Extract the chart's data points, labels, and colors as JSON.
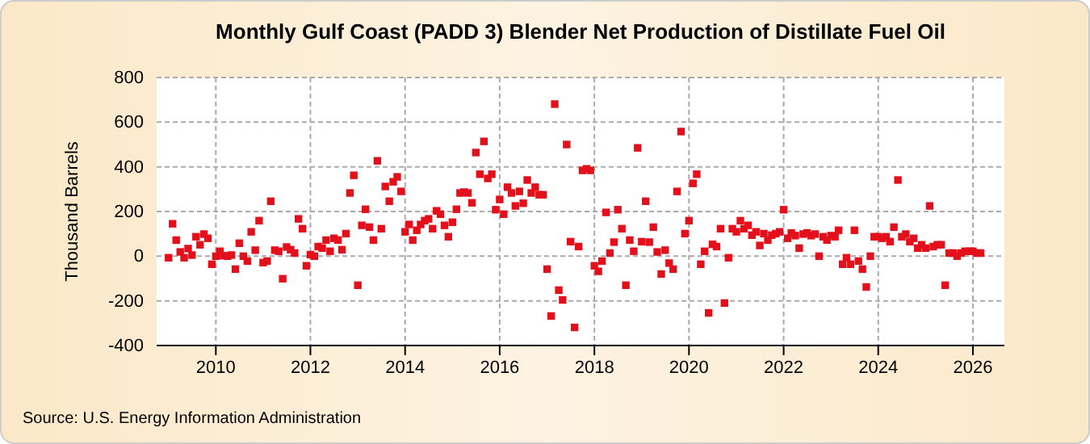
{
  "chart_data": {
    "type": "scatter",
    "title": "Monthly Gulf Coast (PADD 3) Blender Net Production of Distillate Fuel Oil",
    "ylabel": "Thousand Barrels",
    "annotations": [
      "Source: U.S. Energy Information Administration"
    ],
    "xlim": [
      "2008-10",
      "2026-09"
    ],
    "xticks": [
      "2010",
      "2012",
      "2014",
      "2016",
      "2018",
      "2020",
      "2022",
      "2024",
      "2026"
    ],
    "ylim": [
      -400,
      800
    ],
    "yticks": [
      -400,
      -200,
      0,
      200,
      400,
      600,
      800
    ],
    "grid": true,
    "marker": "square",
    "x": [
      "2009-01",
      "2009-02",
      "2009-03",
      "2009-04",
      "2009-05",
      "2009-06",
      "2009-07",
      "2009-08",
      "2009-09",
      "2009-10",
      "2009-11",
      "2009-12",
      "2010-01",
      "2010-02",
      "2010-03",
      "2010-04",
      "2010-05",
      "2010-06",
      "2010-07",
      "2010-08",
      "2010-09",
      "2010-10",
      "2010-11",
      "2010-12",
      "2011-01",
      "2011-02",
      "2011-03",
      "2011-04",
      "2011-05",
      "2011-06",
      "2011-07",
      "2011-08",
      "2011-09",
      "2011-10",
      "2011-11",
      "2011-12",
      "2012-01",
      "2012-02",
      "2012-03",
      "2012-04",
      "2012-05",
      "2012-06",
      "2012-07",
      "2012-08",
      "2012-09",
      "2012-10",
      "2012-11",
      "2012-12",
      "2013-01",
      "2013-02",
      "2013-03",
      "2013-04",
      "2013-05",
      "2013-06",
      "2013-07",
      "2013-08",
      "2013-09",
      "2013-10",
      "2013-11",
      "2013-12",
      "2014-01",
      "2014-02",
      "2014-03",
      "2014-04",
      "2014-05",
      "2014-06",
      "2014-07",
      "2014-08",
      "2014-09",
      "2014-10",
      "2014-11",
      "2014-12",
      "2015-01",
      "2015-02",
      "2015-03",
      "2015-04",
      "2015-05",
      "2015-06",
      "2015-07",
      "2015-08",
      "2015-09",
      "2015-10",
      "2015-11",
      "2015-12",
      "2016-01",
      "2016-02",
      "2016-03",
      "2016-04",
      "2016-05",
      "2016-06",
      "2016-07",
      "2016-08",
      "2016-09",
      "2016-10",
      "2016-11",
      "2016-12",
      "2017-01",
      "2017-02",
      "2017-03",
      "2017-04",
      "2017-05",
      "2017-06",
      "2017-07",
      "2017-08",
      "2017-09",
      "2017-10",
      "2017-11",
      "2017-12",
      "2018-01",
      "2018-02",
      "2018-03",
      "2018-04",
      "2018-05",
      "2018-06",
      "2018-07",
      "2018-08",
      "2018-09",
      "2018-10",
      "2018-11",
      "2018-12",
      "2019-01",
      "2019-02",
      "2019-03",
      "2019-04",
      "2019-05",
      "2019-06",
      "2019-07",
      "2019-08",
      "2019-09",
      "2019-10",
      "2019-11",
      "2019-12",
      "2020-01",
      "2020-02",
      "2020-03",
      "2020-04",
      "2020-05",
      "2020-06",
      "2020-07",
      "2020-08",
      "2020-09",
      "2020-10",
      "2020-11",
      "2020-12",
      "2021-01",
      "2021-02",
      "2021-03",
      "2021-04",
      "2021-05",
      "2021-06",
      "2021-07",
      "2021-08",
      "2021-09",
      "2021-10",
      "2021-11",
      "2021-12",
      "2022-01",
      "2022-02",
      "2022-03",
      "2022-04",
      "2022-05",
      "2022-06",
      "2022-07",
      "2022-08",
      "2022-09",
      "2022-10",
      "2022-11",
      "2022-12",
      "2023-01",
      "2023-02",
      "2023-03",
      "2023-04",
      "2023-05",
      "2023-06",
      "2023-07",
      "2023-08",
      "2023-09",
      "2023-10",
      "2023-11",
      "2023-12",
      "2024-01",
      "2024-02",
      "2024-03",
      "2024-04",
      "2024-05",
      "2024-06",
      "2024-07",
      "2024-08",
      "2024-09",
      "2024-10",
      "2024-11",
      "2024-12",
      "2025-01",
      "2025-02",
      "2025-03",
      "2025-04",
      "2025-05",
      "2025-06",
      "2025-07",
      "2025-08",
      "2025-09",
      "2025-10",
      "2025-11",
      "2025-12",
      "2026-01",
      "2026-02",
      "2026-03"
    ],
    "series": [
      {
        "color": "#e3101c",
        "values": [
          -7,
          145,
          72,
          19,
          -7,
          34,
          5,
          87,
          51,
          99,
          80,
          -36,
          0,
          22,
          2,
          0,
          5,
          -58,
          58,
          0,
          -22,
          109,
          27,
          159,
          -29,
          -22,
          246,
          27,
          22,
          -101,
          41,
          29,
          14,
          167,
          123,
          -43,
          7,
          0,
          43,
          36,
          72,
          22,
          80,
          72,
          29,
          101,
          283,
          362,
          -130,
          138,
          210,
          130,
          72,
          427,
          123,
          312,
          246,
          333,
          355,
          290,
          109,
          142,
          72,
          116,
          142,
          159,
          167,
          123,
          203,
          188,
          138,
          87,
          152,
          210,
          283,
          287,
          283,
          239,
          464,
          367,
          514,
          348,
          367,
          208,
          254,
          188,
          309,
          283,
          225,
          290,
          237,
          341,
          283,
          309,
          275,
          275,
          -58,
          -268,
          681,
          -152,
          -196,
          500,
          65,
          -319,
          43,
          384,
          391,
          384,
          -43,
          -68,
          -22,
          196,
          14,
          63,
          208,
          123,
          -130,
          72,
          22,
          485,
          65,
          246,
          63,
          130,
          19,
          -80,
          27,
          -31,
          -58,
          290,
          558,
          101,
          159,
          326,
          367,
          -36,
          22,
          -254,
          53,
          43,
          123,
          -210,
          -7,
          123,
          109,
          159,
          123,
          138,
          94,
          109,
          48,
          101,
          72,
          94,
          101,
          109,
          208,
          80,
          104,
          92,
          36,
          99,
          104,
          92,
          99,
          0,
          87,
          72,
          92,
          87,
          116,
          -36,
          -7,
          -36,
          116,
          -22,
          -58,
          -138,
          0,
          87,
          87,
          80,
          87,
          65,
          130,
          341,
          87,
          99,
          65,
          80,
          36,
          51,
          36,
          225,
          43,
          51,
          51,
          -130,
          14,
          14,
          0,
          14,
          22,
          22,
          22,
          14,
          14
        ]
      }
    ]
  }
}
